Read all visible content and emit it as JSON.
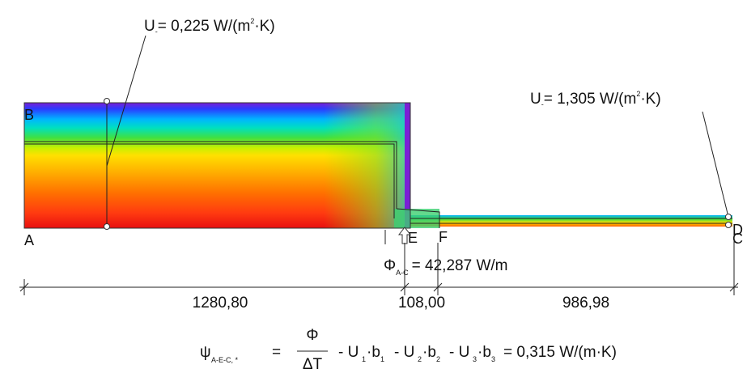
{
  "u_left": {
    "main": "U",
    "sub": "-",
    "rest": "= 0,225 W/(m",
    "sup": "2",
    "end": "·K)"
  },
  "u_right": {
    "main": "U",
    "sub": "-",
    "rest": "= 1,305 W/(m",
    "sup": "2",
    "end": "·K)"
  },
  "points": {
    "a": "A",
    "b": "B",
    "c": "C",
    "d": "D",
    "e": "E",
    "f": "F"
  },
  "flux": {
    "main": "Φ",
    "sub": "A-C",
    "rest": "= 42,287 W/m"
  },
  "dimensions": [
    "1280,80",
    "108,00",
    "986,98"
  ],
  "formula": {
    "psi": "ψ",
    "psi_sub": "A-E-C, *",
    "eq": "=",
    "numerator": "Φ",
    "denominator": "ΔT",
    "terms": [
      {
        "op": "- U",
        "sub": "1",
        "mid": "·b",
        "sub2": "1"
      },
      {
        "op": "- U",
        "sub": "2",
        "mid": "·b",
        "sub2": "2"
      },
      {
        "op": "- U",
        "sub": "3",
        "mid": "·b",
        "sub2": "3"
      }
    ],
    "result": "= 0,315 W/(m·K)"
  }
}
